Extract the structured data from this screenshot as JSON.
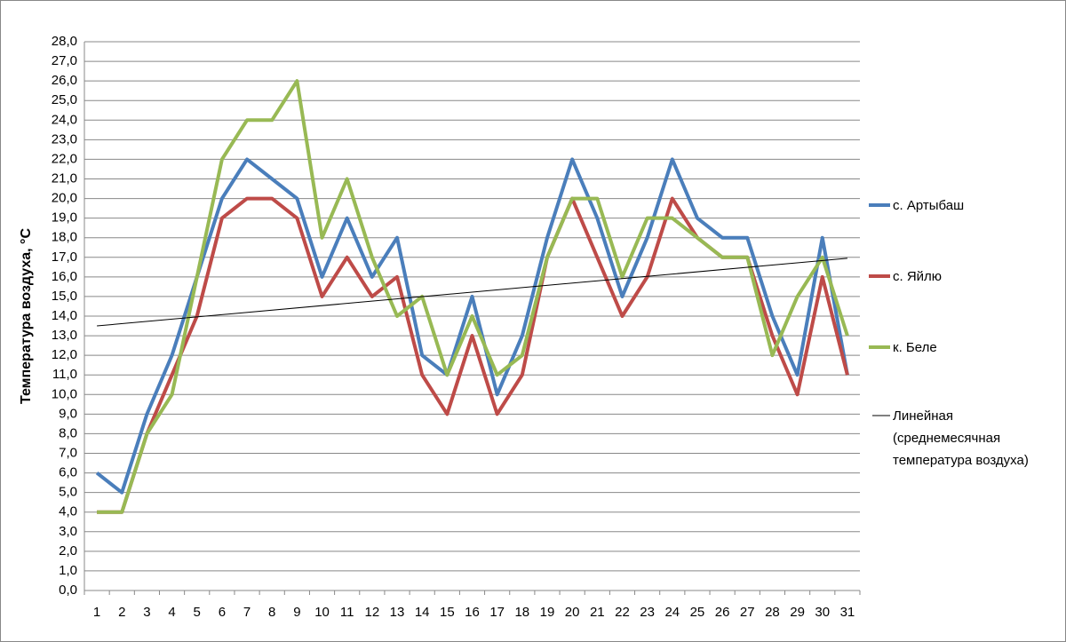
{
  "chart_data": {
    "type": "line",
    "y_label": "Температура воздуха, °С",
    "categories": [
      "1",
      "2",
      "3",
      "4",
      "5",
      "6",
      "7",
      "8",
      "9",
      "10",
      "11",
      "12",
      "13",
      "14",
      "15",
      "16",
      "17",
      "18",
      "19",
      "20",
      "21",
      "22",
      "23",
      "24",
      "25",
      "26",
      "27",
      "28",
      "29",
      "30",
      "31"
    ],
    "series": [
      {
        "name": "с. Артыбаш",
        "color": "#4a7ebb",
        "values": [
          6,
          5,
          9,
          12,
          16,
          20,
          22,
          21,
          20,
          16,
          19,
          16,
          18,
          12,
          11,
          15,
          10,
          13,
          18,
          22,
          19,
          15,
          18,
          22,
          19,
          18,
          18,
          14,
          11,
          18,
          11
        ]
      },
      {
        "name": "с. Яйлю",
        "color": "#be4b48",
        "values": [
          4,
          4,
          8,
          11,
          14,
          19,
          20,
          20,
          19,
          15,
          17,
          15,
          16,
          11,
          9,
          13,
          9,
          11,
          17,
          20,
          17,
          14,
          16,
          20,
          18,
          17,
          17,
          13,
          10,
          16,
          11
        ]
      },
      {
        "name": "к. Беле",
        "color": "#98b954",
        "values": [
          4,
          4,
          8,
          10,
          16,
          22,
          24,
          24,
          26,
          18,
          21,
          17,
          14,
          15,
          11,
          14,
          11,
          12,
          17,
          20,
          20,
          16,
          19,
          19,
          18,
          17,
          17,
          12,
          15,
          17,
          13
        ]
      }
    ],
    "trendline": {
      "name": "Линейная (среднемесячная температура воздуха)",
      "color": "#000000",
      "start": 13.5,
      "end": 16.95
    },
    "ylim": [
      0,
      28
    ],
    "yticks": [
      {
        "value": 0,
        "label": "0,0"
      },
      {
        "value": 1,
        "label": "1,0"
      },
      {
        "value": 2,
        "label": "2,0"
      },
      {
        "value": 3,
        "label": "3,0"
      },
      {
        "value": 4,
        "label": "4,0"
      },
      {
        "value": 5,
        "label": "5,0"
      },
      {
        "value": 6,
        "label": "6,0"
      },
      {
        "value": 7,
        "label": "7,0"
      },
      {
        "value": 8,
        "label": "8,0"
      },
      {
        "value": 9,
        "label": "9,0"
      },
      {
        "value": 10,
        "label": "10,0"
      },
      {
        "value": 11,
        "label": "11,0"
      },
      {
        "value": 12,
        "label": "12,0"
      },
      {
        "value": 13,
        "label": "13,0"
      },
      {
        "value": 14,
        "label": "14,0"
      },
      {
        "value": 15,
        "label": "15,0"
      },
      {
        "value": 16,
        "label": "16,0"
      },
      {
        "value": 17,
        "label": "17,0"
      },
      {
        "value": 18,
        "label": "18,0"
      },
      {
        "value": 19,
        "label": "19,0"
      },
      {
        "value": 20,
        "label": "20,0"
      },
      {
        "value": 21,
        "label": "21,0"
      },
      {
        "value": 22,
        "label": "22,0"
      },
      {
        "value": 23,
        "label": "23,0"
      },
      {
        "value": 24,
        "label": "24,0"
      },
      {
        "value": 25,
        "label": "25,0"
      },
      {
        "value": 26,
        "label": "26,0"
      },
      {
        "value": 27,
        "label": "27,0"
      },
      {
        "value": 28,
        "label": "28,0"
      }
    ],
    "grid": true
  }
}
